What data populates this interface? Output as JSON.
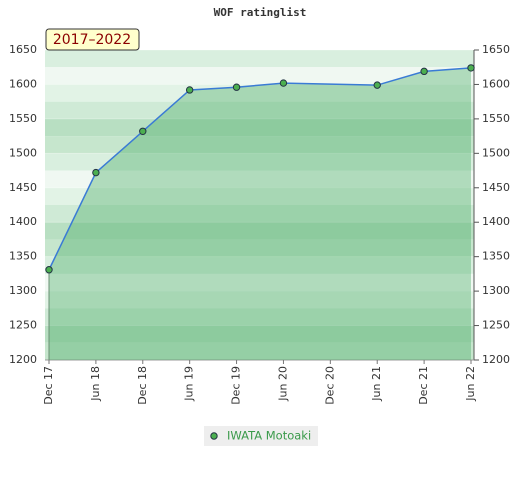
{
  "chart_data": {
    "type": "line",
    "title": "WOF ratinglist",
    "annotation": "2017–2022",
    "categories": [
      "Dec 17",
      "Jun 18",
      "Dec 18",
      "Jun 19",
      "Dec 19",
      "Jun 20",
      "Dec 20",
      "Jun 21",
      "Dec 21",
      "Jun 22"
    ],
    "series": [
      {
        "name": "IWATA Motoaki",
        "color": "#3a7bd5",
        "x": [
          "Dec 17",
          "Jun 18",
          "Dec 18",
          "Jun 19",
          "Dec 19",
          "Jun 20",
          "Jun 21",
          "Dec 21",
          "Jun 22"
        ],
        "values": [
          1331,
          1472,
          1532,
          1592,
          1596,
          1602,
          1599,
          1619,
          1624
        ]
      }
    ],
    "ylim": [
      1200,
      1650
    ],
    "yticks": [
      1200,
      1250,
      1300,
      1350,
      1400,
      1450,
      1500,
      1550,
      1600,
      1650
    ],
    "grid": true,
    "legend": "bottom"
  }
}
